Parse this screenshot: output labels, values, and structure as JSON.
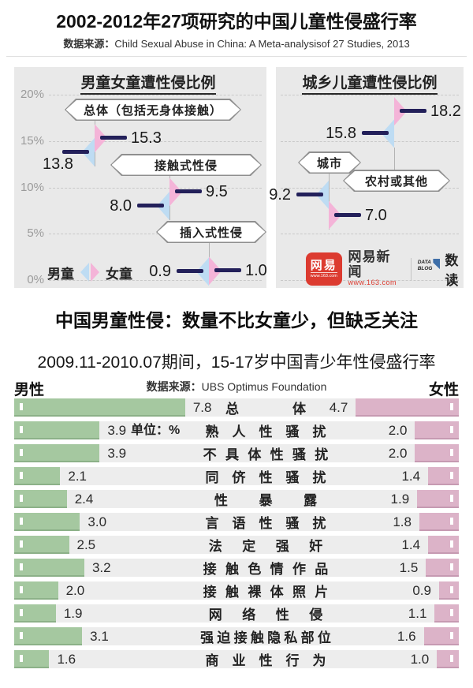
{
  "header": {
    "title": "2002-2012年27项研究的中国儿童性侵盛行率",
    "source_label": "数据来源：",
    "source_text": "Child Sexual Abuse in China: A Meta-analysisof 27 Studies, 2013"
  },
  "section2_headline": "中国男童性侵：数量不比女童少，但缺乏关注",
  "logo": {
    "netease_icon_text": "网易",
    "netease_icon_sub": "www.163.com",
    "netease_name": "网易新闻",
    "netease_url": "www.163.com",
    "datablog_line1": "DATA",
    "datablog_line2": "BLOG",
    "datablog_name": "数读"
  },
  "colors": {
    "boy": "#bedcf3",
    "girl": "#f4b4d8",
    "value_line": "#23205a",
    "male_bar": "#a5c8a0",
    "male_bar_border": "#8cb188",
    "female_bar": "#dcb3c8",
    "female_bar_border": "#c69ab2",
    "row_bg": "#ededed",
    "panel_bg": "#e9e9e9",
    "netease_red": "#dc3b30",
    "datablog_blue": "#3f6fa8"
  },
  "chart_data": [
    {
      "type": "scatter",
      "title": "男童女童遭性侵比例",
      "unit": "%",
      "ylim": [
        0,
        22
      ],
      "y_ticks": [
        "20%",
        "15%",
        "10%",
        "5%",
        "0%"
      ],
      "y_tick_values": [
        20,
        15,
        10,
        5,
        0
      ],
      "grid": "dashed horizontal",
      "legend": {
        "boy": "男童",
        "girl": "女童"
      },
      "legend_position": "bottom-left",
      "groups": [
        {
          "label": "总体（包括无身体接触）",
          "boy": 13.8,
          "girl": 15.3
        },
        {
          "label": "接触式性侵",
          "boy": 8.0,
          "girl": 9.5
        },
        {
          "label": "插入式性侵",
          "boy": 0.9,
          "girl": 1.0
        }
      ]
    },
    {
      "type": "scatter",
      "title": "城乡儿童遭性侵比例",
      "unit": "%",
      "ylim": [
        0,
        22
      ],
      "grid": "dashed horizontal",
      "groups": [
        {
          "label": "农村或其他",
          "boy": 15.8,
          "girl": 18.2
        },
        {
          "label": "城市",
          "boy": 9.2,
          "girl": 7.0
        }
      ]
    },
    {
      "type": "bar",
      "title": "2009.11-2010.07期间，15-17岁中国青少年性侵盛行率",
      "source_label": "数据来源：",
      "source_text": "UBS Optimus Foundation",
      "male_label": "男性",
      "female_label": "女性",
      "unit_note": "单位：%",
      "orientation": "diverging horizontal",
      "categories": [
        "总体",
        "熟人性骚扰",
        "不具体性骚扰",
        "同侪性骚扰",
        "性暴露",
        "言语性骚扰",
        "法定强奸",
        "接触色情作品",
        "接触裸体照片",
        "网络性侵",
        "强迫接触隐私部位",
        "商业性行为"
      ],
      "series": [
        {
          "name": "男性",
          "values": [
            7.8,
            3.9,
            3.9,
            2.1,
            2.4,
            3.0,
            2.5,
            3.2,
            2.0,
            1.9,
            3.1,
            1.6
          ]
        },
        {
          "name": "女性",
          "values": [
            4.7,
            2.0,
            2.0,
            1.4,
            1.9,
            1.8,
            1.4,
            1.5,
            0.9,
            1.1,
            1.6,
            1.0
          ]
        }
      ]
    }
  ]
}
